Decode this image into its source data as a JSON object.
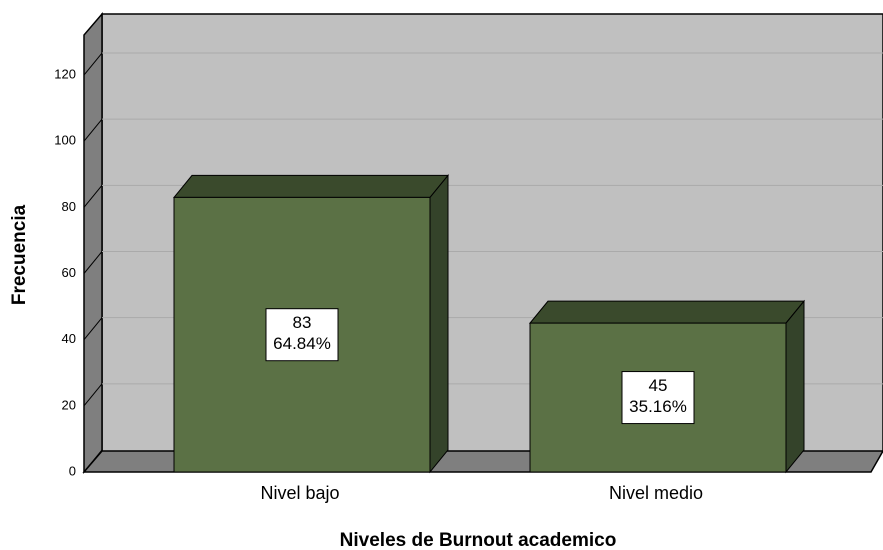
{
  "chart_data": {
    "type": "bar3d",
    "categories": [
      "Nivel bajo",
      "Nivel medio"
    ],
    "values": [
      83,
      45
    ],
    "percent_labels": [
      "64.84%",
      "35.16%"
    ],
    "color": "#5b7145",
    "x_label": "Niveles de Burnout academico",
    "y_label": "Frecuencia",
    "ylim": [
      0,
      133
    ],
    "yticks": [
      0,
      20,
      40,
      60,
      80,
      100,
      120
    ],
    "grid": true
  }
}
